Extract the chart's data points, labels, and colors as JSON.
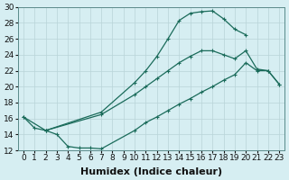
{
  "xlabel": "Humidex (Indice chaleur)",
  "background_color": "#d6eef2",
  "grid_color": "#b8d4d8",
  "line_color": "#1a6b5a",
  "xlim": [
    -0.5,
    23.5
  ],
  "ylim": [
    12,
    30
  ],
  "xticks": [
    0,
    1,
    2,
    3,
    4,
    5,
    6,
    7,
    8,
    9,
    10,
    11,
    12,
    13,
    14,
    15,
    16,
    17,
    18,
    19,
    20,
    21,
    22,
    23
  ],
  "yticks": [
    12,
    14,
    16,
    18,
    20,
    22,
    24,
    26,
    28,
    30
  ],
  "curve_top_x": [
    0,
    2,
    7,
    10,
    11,
    12,
    13,
    14,
    15,
    16,
    17,
    18,
    19,
    20
  ],
  "curve_top_y": [
    16.2,
    14.5,
    16.8,
    20.5,
    22.0,
    23.8,
    26.0,
    28.3,
    29.2,
    29.4,
    29.5,
    28.5,
    27.2,
    26.5
  ],
  "curve_mid_x": [
    2,
    7,
    10,
    11,
    12,
    13,
    14,
    15,
    16,
    17,
    18,
    19,
    20,
    21,
    22,
    23
  ],
  "curve_mid_y": [
    14.5,
    16.5,
    19.0,
    20.0,
    21.0,
    22.0,
    23.0,
    23.8,
    24.5,
    24.5,
    24.0,
    23.5,
    24.5,
    22.2,
    22.0,
    20.3
  ],
  "curve_bot_x": [
    0,
    1,
    2,
    3,
    4,
    5,
    6,
    7,
    10,
    11,
    12,
    13,
    14,
    15,
    16,
    17,
    18,
    19,
    20,
    21,
    22,
    23
  ],
  "curve_bot_y": [
    16.2,
    14.8,
    14.5,
    14.0,
    12.5,
    12.3,
    12.3,
    12.2,
    14.5,
    15.5,
    16.2,
    17.0,
    17.8,
    18.5,
    19.3,
    20.0,
    20.8,
    21.5,
    23.0,
    22.0,
    22.0,
    20.3
  ],
  "font_size_label": 8,
  "font_size_tick": 6.5
}
